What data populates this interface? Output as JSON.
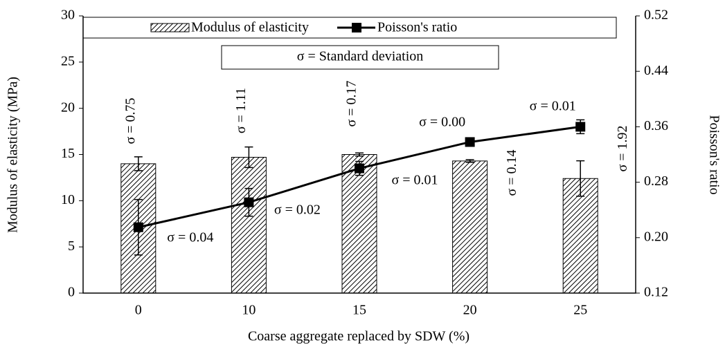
{
  "chart_data": {
    "type": "bar_line",
    "categories": [
      "0",
      "10",
      "15",
      "20",
      "25"
    ],
    "series": [
      {
        "name": "Modulus of elasticity",
        "type": "bar",
        "color": "#000000",
        "values": [
          14.0,
          14.7,
          15.0,
          14.3,
          12.4
        ],
        "errors": [
          0.75,
          1.11,
          0.17,
          0.14,
          1.92
        ],
        "error_labels": [
          "σ = 0.75",
          "σ = 1.11",
          "σ = 0.17",
          "σ = 0.14",
          "σ = 1.92"
        ]
      },
      {
        "name": "Poisson's ratio",
        "type": "line",
        "axis": "y2",
        "color": "#000000",
        "values": [
          0.215,
          0.251,
          0.3,
          0.338,
          0.36
        ],
        "errors": [
          0.04,
          0.02,
          0.01,
          0.0,
          0.01
        ],
        "error_labels": [
          "σ = 0.04",
          "σ = 0.02",
          "σ = 0.01",
          "σ = 0.00",
          "σ = 0.01"
        ]
      }
    ],
    "annotation": "σ = Standard deviation",
    "xlabel": "Coarse aggregate replaced by SDW (%)",
    "ylabel": "Modulus of elasticity (MPa)",
    "y2label": "Poisson's ratio",
    "ylim": [
      0,
      30
    ],
    "yticks": [
      0,
      5,
      10,
      15,
      20,
      25,
      30
    ],
    "y2lim": [
      0.12,
      0.52
    ],
    "y2ticks": [
      0.12,
      {
        "value": 0.2,
        "label": "0.20"
      },
      0.28,
      0.36,
      0.44,
      0.52
    ]
  }
}
